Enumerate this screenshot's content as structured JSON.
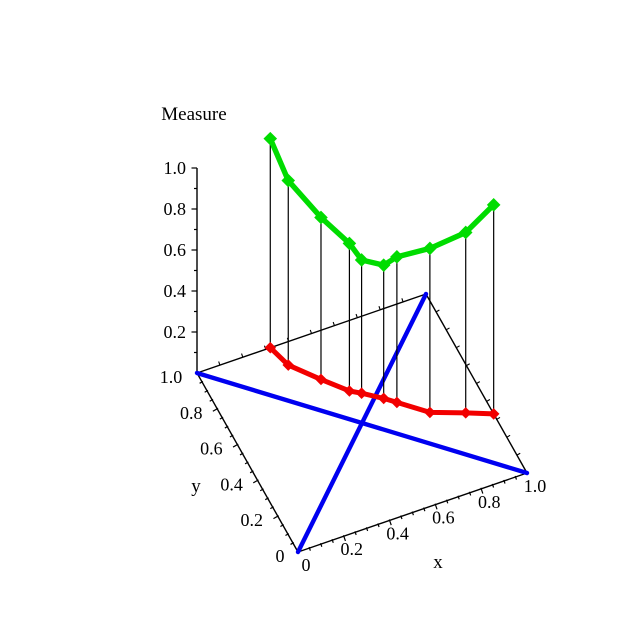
{
  "figure": {
    "kind": "3d-measure-plot",
    "background": "#ffffff"
  },
  "colors": {
    "measure_curve": "#00dc00",
    "base_curve": "#f20000",
    "diagonals": "#0000f0",
    "axes": "#000000",
    "drop_lines": "#000000"
  },
  "chart_data": {
    "type": "line",
    "subtype": "3d-curves-with-drop-lines",
    "title": "",
    "grid": false,
    "legend": null,
    "x_axis": {
      "label": "x",
      "range": [
        0,
        1
      ],
      "tick_values": [
        0,
        0.2,
        0.4,
        0.6,
        0.8,
        1.0
      ],
      "tick_labels": [
        "0",
        "0.2",
        "0.4",
        "0.6",
        "0.8",
        "1.0"
      ],
      "minor_tick_step": 0.05
    },
    "y_axis": {
      "label": "y",
      "range": [
        0,
        1
      ],
      "tick_values": [
        0,
        0.2,
        0.4,
        0.6,
        0.8,
        1.0
      ],
      "tick_labels": [
        "0",
        "0.2",
        "0.4",
        "0.6",
        "0.8",
        "1.0"
      ],
      "minor_tick_step": 0.05
    },
    "z_axis": {
      "label": "Measure",
      "range": [
        0,
        1
      ],
      "tick_values": [
        0.2,
        0.4,
        0.6,
        0.8,
        1.0
      ],
      "tick_labels": [
        "0.2",
        "0.4",
        "0.6",
        "0.8",
        "1.0"
      ],
      "minor_tick_step": 0.1
    },
    "points": [
      {
        "x": 0.32,
        "y": 1.0,
        "measure": 1.02
      },
      {
        "x": 0.35,
        "y": 0.89,
        "measure": 0.9
      },
      {
        "x": 0.44,
        "y": 0.77,
        "measure": 0.79
      },
      {
        "x": 0.52,
        "y": 0.67,
        "measure": 0.72
      },
      {
        "x": 0.56,
        "y": 0.64,
        "measure": 0.65
      },
      {
        "x": 0.63,
        "y": 0.58,
        "measure": 0.65
      },
      {
        "x": 0.67,
        "y": 0.54,
        "measure": 0.71
      },
      {
        "x": 0.77,
        "y": 0.44,
        "measure": 0.8
      },
      {
        "x": 0.9,
        "y": 0.38,
        "measure": 0.88
      },
      {
        "x": 1.0,
        "y": 0.33,
        "measure": 1.02
      }
    ],
    "series": [
      {
        "name": "measure-values",
        "color": "#00dc00",
        "marker": "diamond",
        "height_field": "measure"
      },
      {
        "name": "base-points",
        "color": "#f20000",
        "marker": "diamond",
        "height_field": "zero"
      }
    ],
    "drop_lines": {
      "show": true,
      "color": "#000000"
    },
    "base_diagonals": [
      {
        "name": "diagonal-y-equals-x",
        "from_xy": [
          0,
          0
        ],
        "to_xy": [
          1,
          1
        ],
        "color": "#0000f0"
      },
      {
        "name": "anti-diagonal-y-equals-1-minus-x",
        "from_xy": [
          0,
          1
        ],
        "to_xy": [
          1,
          0
        ],
        "color": "#0000f0"
      }
    ]
  }
}
